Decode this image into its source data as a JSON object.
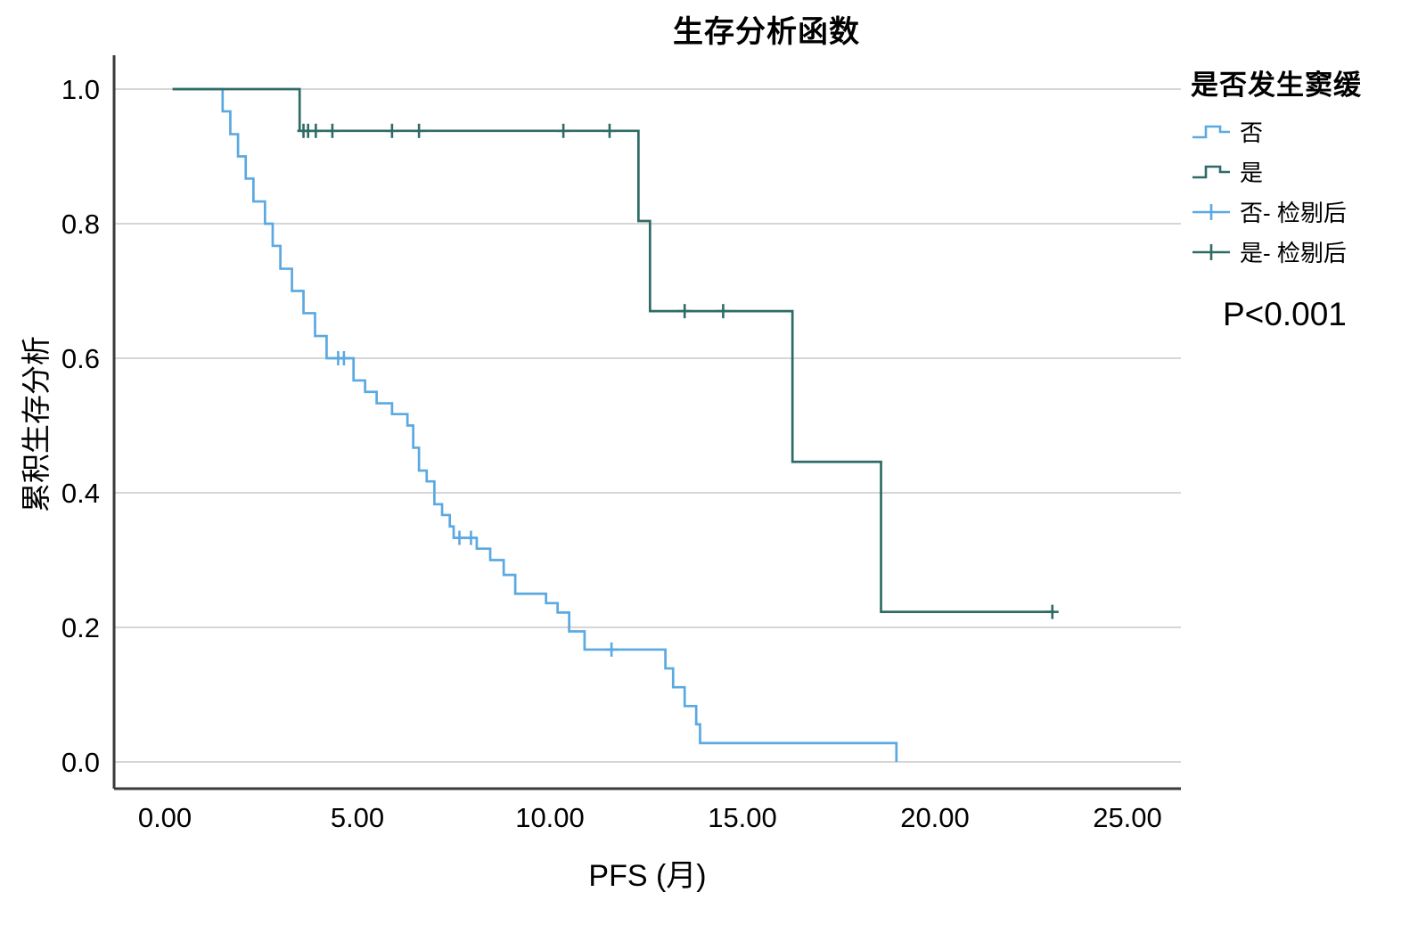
{
  "title": "生存分析函数",
  "axes": {
    "x_label": "PFS (月)",
    "y_label": "累积生存分析"
  },
  "annotation": {
    "p_value": "P<0.001"
  },
  "legend": {
    "title": "是否发生窦缓",
    "entries": [
      {
        "label": "否",
        "symbol": "step",
        "color": "#5BA9E1"
      },
      {
        "label": "是",
        "symbol": "step",
        "color": "#2F6B66"
      },
      {
        "label": "否- 检剔后",
        "symbol": "censor",
        "color": "#5BA9E1"
      },
      {
        "label": "是- 检剔后",
        "symbol": "censor",
        "color": "#2F6B66"
      }
    ]
  },
  "chart_data": {
    "type": "line",
    "subtype": "kaplan-meier-step",
    "title": "生存分析函数",
    "xlabel": "PFS (月)",
    "ylabel": "累积生存分析",
    "xlim": [
      0,
      26.4
    ],
    "ylim": [
      0,
      1.05
    ],
    "xtick_values": [
      0,
      5,
      10,
      15,
      20,
      25
    ],
    "xtick_labels": [
      "0.00",
      "5.00",
      "10.00",
      "15.00",
      "20.00",
      "25.00"
    ],
    "ytick_values": [
      0.0,
      0.2,
      0.4,
      0.6,
      0.8,
      1.0
    ],
    "ytick_labels": [
      "0.0",
      "0.2",
      "0.4",
      "0.6",
      "0.8",
      "1.0"
    ],
    "grid": "horizontal",
    "legend_position": "right",
    "colors": {
      "grid": "#c9c9c9",
      "axis": "#3a3a3a"
    },
    "series": [
      {
        "name": "否",
        "color": "#5BA9E1",
        "start": [
          0.2,
          1.0
        ],
        "drops": [
          [
            1.5,
            0.967
          ],
          [
            1.7,
            0.933
          ],
          [
            1.9,
            0.9
          ],
          [
            2.1,
            0.867
          ],
          [
            2.3,
            0.833
          ],
          [
            2.6,
            0.8
          ],
          [
            2.8,
            0.767
          ],
          [
            3.0,
            0.733
          ],
          [
            3.3,
            0.7
          ],
          [
            3.6,
            0.667
          ],
          [
            3.9,
            0.633
          ],
          [
            4.2,
            0.6
          ],
          [
            4.9,
            0.567
          ],
          [
            5.2,
            0.55
          ],
          [
            5.5,
            0.533
          ],
          [
            5.9,
            0.517
          ],
          [
            6.3,
            0.5
          ],
          [
            6.45,
            0.467
          ],
          [
            6.6,
            0.433
          ],
          [
            6.8,
            0.417
          ],
          [
            7.0,
            0.383
          ],
          [
            7.2,
            0.367
          ],
          [
            7.4,
            0.35
          ],
          [
            7.5,
            0.333
          ],
          [
            8.1,
            0.317
          ],
          [
            8.45,
            0.3
          ],
          [
            8.8,
            0.278
          ],
          [
            9.1,
            0.25
          ],
          [
            9.9,
            0.236
          ],
          [
            10.2,
            0.222
          ],
          [
            10.5,
            0.194
          ],
          [
            10.9,
            0.167
          ],
          [
            13.0,
            0.139
          ],
          [
            13.2,
            0.111
          ],
          [
            13.5,
            0.083
          ],
          [
            13.8,
            0.056
          ],
          [
            13.9,
            0.028
          ],
          [
            19.0,
            0.0
          ]
        ],
        "end_x": 19.0,
        "censored": [
          [
            4.5,
            0.6
          ],
          [
            4.65,
            0.6
          ],
          [
            7.65,
            0.333
          ],
          [
            7.95,
            0.333
          ],
          [
            11.6,
            0.167
          ]
        ]
      },
      {
        "name": "是",
        "color": "#2F6B66",
        "start": [
          0.2,
          1.0
        ],
        "drops": [
          [
            3.5,
            0.938
          ],
          [
            12.3,
            0.804
          ],
          [
            12.6,
            0.67
          ],
          [
            16.3,
            0.446
          ],
          [
            18.6,
            0.223
          ]
        ],
        "end_x": 23.1,
        "censored": [
          [
            3.6,
            0.938
          ],
          [
            3.72,
            0.938
          ],
          [
            3.92,
            0.938
          ],
          [
            4.35,
            0.938
          ],
          [
            5.9,
            0.938
          ],
          [
            6.6,
            0.938
          ],
          [
            10.35,
            0.938
          ],
          [
            11.55,
            0.938
          ],
          [
            13.5,
            0.67
          ],
          [
            14.5,
            0.67
          ],
          [
            23.05,
            0.223
          ]
        ]
      }
    ]
  }
}
